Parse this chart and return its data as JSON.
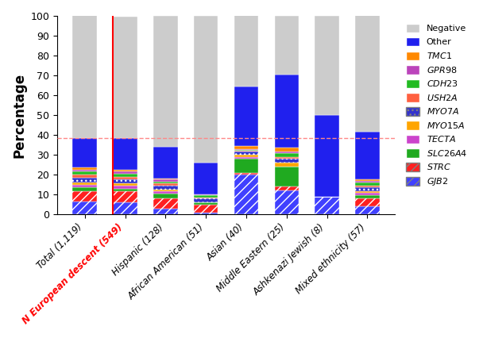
{
  "categories": [
    "Total (1,119)",
    "N European descent (549)",
    "Hispanic (128)",
    "African American (51)",
    "Asian (40)",
    "Middle Eastern (25)",
    "Ashkenazi Jewish (8)",
    "Mixed ethnicity (57)"
  ],
  "layers": {
    "GJB2": [
      6.5,
      6.0,
      3.0,
      1.0,
      20.0,
      12.0,
      9.0,
      4.0
    ],
    "STRC": [
      5.0,
      5.5,
      5.0,
      4.0,
      1.0,
      2.0,
      0.0,
      4.0
    ],
    "SLC26A4": [
      2.0,
      1.5,
      2.5,
      1.0,
      7.0,
      10.0,
      0.0,
      1.5
    ],
    "TECTA": [
      1.5,
      1.5,
      1.0,
      0.0,
      1.0,
      0.0,
      0.0,
      1.5
    ],
    "MYO15A": [
      1.0,
      1.0,
      1.0,
      0.0,
      1.0,
      2.0,
      0.0,
      0.5
    ],
    "MYO7A": [
      2.5,
      2.0,
      2.0,
      2.0,
      1.5,
      2.0,
      0.0,
      2.0
    ],
    "USH2A": [
      1.5,
      1.5,
      1.0,
      0.5,
      0.5,
      1.0,
      0.0,
      1.0
    ],
    "CDH23": [
      1.5,
      1.5,
      1.0,
      1.0,
      0.5,
      2.0,
      0.0,
      1.5
    ],
    "GPR98": [
      1.0,
      1.0,
      1.0,
      0.5,
      0.5,
      0.5,
      0.0,
      1.0
    ],
    "TMC1": [
      1.0,
      1.0,
      0.5,
      0.0,
      1.5,
      2.0,
      0.0,
      0.5
    ],
    "Other": [
      15.0,
      16.0,
      16.0,
      16.0,
      30.0,
      37.0,
      41.0,
      24.0
    ],
    "Negative": [
      62.5,
      61.0,
      66.0,
      74.0,
      37.0,
      29.5,
      50.0,
      59.0
    ]
  },
  "colors": {
    "GJB2": "#4040FF",
    "STRC": "#FF2020",
    "SLC26A4": "#20AA20",
    "TECTA": "#CC44CC",
    "MYO15A": "#FFA500",
    "MYO7A": "#3333CC",
    "USH2A": "#FF6040",
    "CDH23": "#22BB22",
    "GPR98": "#BB44BB",
    "TMC1": "#FF8800",
    "Other": "#2020EE",
    "Negative": "#CCCCCC"
  },
  "hatches": {
    "GJB2": "///",
    "STRC": "///",
    "SLC26A4": "",
    "TECTA": "",
    "MYO15A": "",
    "MYO7A": "...",
    "USH2A": "",
    "CDH23": "",
    "GPR98": "",
    "TMC1": "",
    "Other": "",
    "Negative": ""
  },
  "hline_y": 38.5,
  "hline_color": "#FF8888",
  "vline_x": 1,
  "vline_color": "#FF0000",
  "ylabel": "Percentage",
  "ylim": [
    0,
    100
  ],
  "yticks": [
    0,
    10,
    20,
    30,
    40,
    50,
    60,
    70,
    80,
    90,
    100
  ],
  "figsize": [
    6.08,
    4.26
  ],
  "dpi": 100
}
